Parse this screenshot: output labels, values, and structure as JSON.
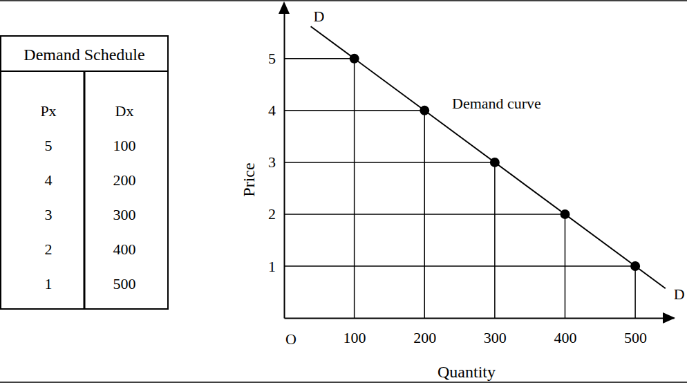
{
  "table": {
    "title": "Demand Schedule",
    "header": [
      "Px",
      "Dx"
    ],
    "rows": [
      [
        5,
        100
      ],
      [
        4,
        200
      ],
      [
        3,
        300
      ],
      [
        2,
        400
      ],
      [
        1,
        500
      ]
    ]
  },
  "chart_data": {
    "type": "line",
    "x_label": "Quantity",
    "y_label": "Price",
    "curve_label": "Demand curve",
    "curve_ends": [
      "D",
      "D"
    ],
    "origin_label": "O",
    "xlim": [
      0,
      555
    ],
    "ylim": [
      0,
      6.05
    ],
    "xticks": [
      100,
      200,
      300,
      400,
      500
    ],
    "yticks": [
      1,
      2,
      3,
      4,
      5
    ],
    "series": [
      {
        "type": "line",
        "line_style": "solid",
        "color": "#000000",
        "x": [
          38,
          543
        ],
        "values": [
          5.62,
          0.57
        ]
      },
      {
        "type": "scatter",
        "marker": "circle",
        "color": "#000000",
        "x": [
          100,
          200,
          300,
          400,
          500
        ],
        "values": [
          5,
          4,
          3,
          2,
          1
        ]
      }
    ]
  }
}
